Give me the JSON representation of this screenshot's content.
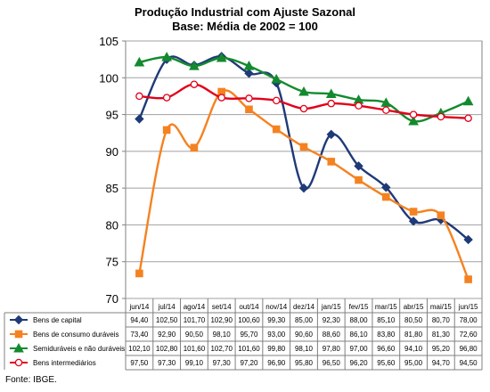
{
  "chart_data": {
    "type": "line",
    "title": "Produção Industrial com Ajuste Sazonal",
    "subtitle": "Base: Média de 2002 = 100",
    "categories": [
      "jun/14",
      "jul/14",
      "ago/14",
      "set/14",
      "out/14",
      "nov/14",
      "dez/14",
      "jan/15",
      "fev/15",
      "mar/15",
      "abr/15",
      "mai/15",
      "jun/15"
    ],
    "ylim": [
      70,
      105
    ],
    "yticks": [
      70,
      75,
      80,
      85,
      90,
      95,
      100,
      105
    ],
    "grid": true,
    "legend": "data-table-below",
    "series": [
      {
        "name": "Bens de capital",
        "color": "#1f3a78",
        "marker": "diamond",
        "values": [
          94.4,
          102.5,
          101.7,
          102.9,
          100.6,
          99.3,
          85.0,
          92.3,
          88.0,
          85.1,
          80.5,
          80.7,
          78.0
        ],
        "labels": [
          "94,40",
          "102,50",
          "101,70",
          "102,90",
          "100,60",
          "99,30",
          "85,00",
          "92,30",
          "88,00",
          "85,10",
          "80,50",
          "80,70",
          "78,00"
        ]
      },
      {
        "name": "Bens de consumo duráveis",
        "color": "#f58220",
        "marker": "square",
        "values": [
          73.4,
          92.9,
          90.5,
          98.1,
          95.7,
          93.0,
          90.6,
          88.6,
          86.1,
          83.8,
          81.8,
          81.3,
          72.6
        ],
        "labels": [
          "73,40",
          "92,90",
          "90,50",
          "98,10",
          "95,70",
          "93,00",
          "90,60",
          "88,60",
          "86,10",
          "83,80",
          "81,80",
          "81,30",
          "72,60"
        ]
      },
      {
        "name": "Semiduráveis e não duráveis",
        "color": "#138a2e",
        "marker": "triangle",
        "values": [
          102.1,
          102.8,
          101.6,
          102.7,
          101.6,
          99.8,
          98.1,
          97.8,
          97.0,
          96.6,
          94.1,
          95.2,
          96.8
        ],
        "labels": [
          "102,10",
          "102,80",
          "101,60",
          "102,70",
          "101,60",
          "99,80",
          "98,10",
          "97,80",
          "97,00",
          "96,60",
          "94,10",
          "95,20",
          "96,80"
        ]
      },
      {
        "name": "Bens intermediários",
        "color": "#e2001a",
        "marker": "circle",
        "values": [
          97.5,
          97.3,
          99.1,
          97.3,
          97.2,
          96.9,
          95.8,
          96.5,
          96.2,
          95.6,
          95.0,
          94.7,
          94.5
        ],
        "labels": [
          "97,50",
          "97,30",
          "99,10",
          "97,30",
          "97,20",
          "96,90",
          "95,80",
          "96,50",
          "96,20",
          "95,60",
          "95,00",
          "94,70",
          "94,50"
        ]
      }
    ],
    "source": "Fonte: IBGE."
  }
}
